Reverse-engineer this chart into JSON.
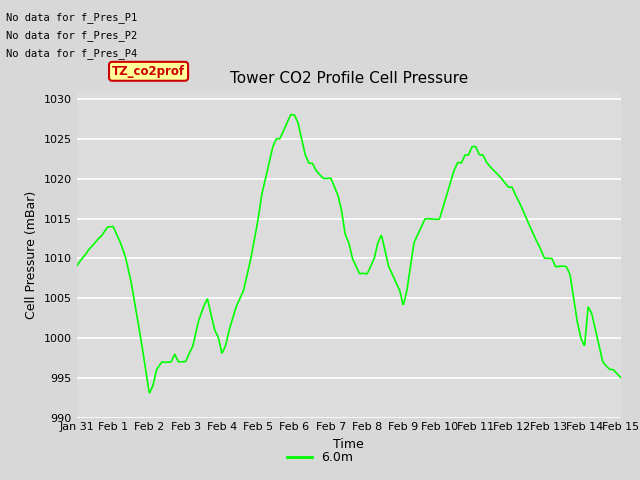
{
  "title": "Tower CO2 Profile Cell Pressure",
  "xlabel": "Time",
  "ylabel": "Cell Pressure (mBar)",
  "ylim": [
    990,
    1031
  ],
  "yticks": [
    990,
    995,
    1000,
    1005,
    1010,
    1015,
    1020,
    1025,
    1030
  ],
  "line_color": "#00FF00",
  "line_width": 1.2,
  "bg_color": "#D8D8D8",
  "plot_bg_color": "#DCDCDC",
  "legend_label": "6.0m",
  "annotations": [
    "No data for f_Pres_P1",
    "No data for f_Pres_P2",
    "No data for f_Pres_P4"
  ],
  "tooltip_label": "TZ_co2prof",
  "tooltip_color": "#FFFF99",
  "tooltip_border": "#CC0000",
  "x_tick_labels": [
    "Jan 31",
    "Feb 1",
    "Feb 2",
    "Feb 3",
    "Feb 4",
    "Feb 5",
    "Feb 6",
    "Feb 7",
    "Feb 8",
    "Feb 9",
    "Feb 10",
    "Feb 11",
    "Feb 12",
    "Feb 13",
    "Feb 14",
    "Feb 15"
  ],
  "n_points": 800
}
